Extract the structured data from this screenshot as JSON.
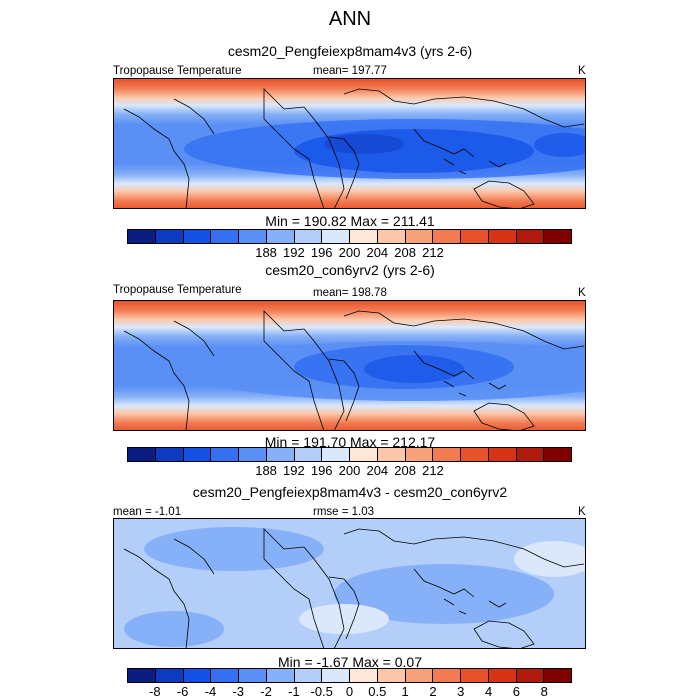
{
  "title": "ANN",
  "panels": [
    {
      "case_title": "cesm20_Pengfeiexp8mam4v3 (yrs 2-6)",
      "left_label": "Tropopause Temperature",
      "center_label": "mean= 197.77",
      "right_label": "K",
      "minmax": "Min = 190.82 Max = 211.41"
    },
    {
      "case_title": "cesm20_con6yrv2 (yrs 2-6)",
      "left_label": "Tropopause Temperature",
      "center_label": "mean= 198.78",
      "right_label": "K",
      "minmax": "Min = 191.70 Max = 212.17"
    },
    {
      "case_title": "cesm20_Pengfeiexp8mam4v3 - cesm20_con6yrv2",
      "left_label": "mean =  -1.01",
      "center_label": "rmse =   1.03",
      "right_label": "K",
      "minmax": "Min =  -1.67 Max =   0.07"
    }
  ],
  "colorbar_abs": {
    "colors": [
      "#0a1e82",
      "#0d3ac0",
      "#1452e6",
      "#3470f2",
      "#5a90f5",
      "#86b0f7",
      "#b3cff9",
      "#dbe8fb",
      "#fde8d8",
      "#fcc6a8",
      "#f8a27c",
      "#f27b52",
      "#e8532a",
      "#d63214",
      "#b01a0a",
      "#800000"
    ],
    "tick_labels": [
      "188",
      "192",
      "196",
      "200",
      "204",
      "208",
      "212"
    ]
  },
  "colorbar_diff": {
    "colors": [
      "#0a1e82",
      "#0d3ac0",
      "#1452e6",
      "#3470f2",
      "#5a90f5",
      "#86b0f7",
      "#b3cff9",
      "#dbe8fb",
      "#fde8d8",
      "#fcc6a8",
      "#f8a27c",
      "#f27b52",
      "#e8532a",
      "#d63214",
      "#b01a0a",
      "#800000"
    ],
    "tick_labels": [
      "-8",
      "-6",
      "-4",
      "-3",
      "-2",
      "-1",
      "-0.5",
      "0",
      "0.5",
      "1",
      "2",
      "3",
      "4",
      "6",
      "8"
    ]
  }
}
